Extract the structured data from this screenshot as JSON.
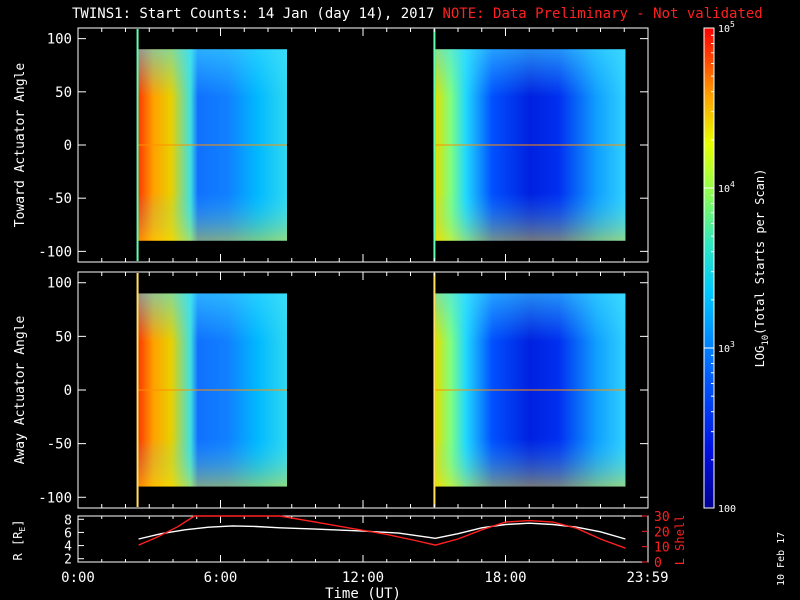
{
  "title": {
    "main": "TWINS1: Start Counts: 14 Jan (day  14), 2017",
    "note": "NOTE: Data Preliminary - Not validated"
  },
  "stamp": "10 Feb 17",
  "colors": {
    "frame": "#ffffff",
    "ephem_r": "#ffffff",
    "ephem_l": "#ff2020",
    "note": "#ff2020"
  },
  "chart_data": [
    {
      "type": "heatmap",
      "panel": "toward",
      "ylabel": "Toward Actuator Angle",
      "ylim": [
        -110,
        110
      ],
      "yticks": [
        -100,
        -50,
        0,
        50,
        100
      ],
      "xlim": [
        0,
        24
      ],
      "data_blocks": [
        {
          "t0": 2.55,
          "t1": 8.8,
          "angle_min": -90,
          "angle_max": 90
        },
        {
          "t0": 15.05,
          "t1": 23.05,
          "angle_min": -90,
          "angle_max": 90
        }
      ],
      "spikes": [
        2.55,
        15.05
      ]
    },
    {
      "type": "heatmap",
      "panel": "away",
      "ylabel": "Away Actuator Angle",
      "ylim": [
        -110,
        110
      ],
      "yticks": [
        -100,
        -50,
        0,
        50,
        100
      ],
      "xlim": [
        0,
        24
      ],
      "data_blocks": [
        {
          "t0": 2.55,
          "t1": 8.8,
          "angle_min": -90,
          "angle_max": 90
        },
        {
          "t0": 15.05,
          "t1": 23.05,
          "angle_min": -90,
          "angle_max": 90
        }
      ],
      "spikes": [
        2.55,
        15.05
      ]
    },
    {
      "type": "colorbar",
      "label": "LOG10(Total Starts per Scan)",
      "label_parts": [
        "LOG",
        "10",
        "(Total Starts per Scan)"
      ],
      "range": [
        100,
        100000
      ],
      "scale": "log",
      "tick_labels": [
        {
          "value": 100000,
          "base": "10",
          "exp": "5"
        },
        {
          "value": 10000,
          "base": "10",
          "exp": "4"
        },
        {
          "value": 1000,
          "base": "10",
          "exp": "3"
        },
        {
          "value": 100,
          "base": "100",
          "exp": ""
        }
      ]
    },
    {
      "type": "line",
      "panel": "ephemeris",
      "xlabel": "Time (UT)",
      "xlim": [
        0,
        24
      ],
      "xtick_labels": [
        "0:00",
        "6:00",
        "12:00",
        "18:00",
        "23:59"
      ],
      "xtick_values": [
        0,
        6,
        12,
        18,
        23.98
      ],
      "left_axis": {
        "label": "R [R",
        "label_sub": "E",
        "label_end": "]",
        "ylim": [
          1.5,
          8.5
        ],
        "ticks": [
          2,
          4,
          6,
          8
        ]
      },
      "right_axis": {
        "label": "L Shell",
        "ylim": [
          0,
          30
        ],
        "ticks": [
          0,
          10,
          20,
          30
        ]
      },
      "series": [
        {
          "axis": "left",
          "x": [
            2.55,
            3.5,
            4.5,
            5.5,
            6.5,
            7.5,
            8.5,
            10,
            12,
            13.5,
            15.05,
            16,
            17,
            18,
            19,
            20,
            21,
            22,
            23.05
          ],
          "y": [
            5.0,
            5.8,
            6.4,
            6.8,
            7.0,
            6.9,
            6.7,
            6.5,
            6.2,
            5.9,
            5.1,
            5.8,
            6.7,
            7.2,
            7.4,
            7.2,
            6.8,
            6.1,
            5.0
          ]
        },
        {
          "axis": "right",
          "x": [
            2.55,
            3.3,
            4.2,
            4.9,
            8.5,
            10,
            11.5,
            13,
            14.2,
            15.05,
            16,
            17,
            18,
            19,
            20,
            21,
            22,
            23.05
          ],
          "y": [
            11,
            16,
            23,
            31,
            31,
            26,
            22,
            18,
            14,
            11,
            15,
            21,
            26,
            27,
            26,
            22,
            15,
            9
          ]
        }
      ]
    }
  ]
}
